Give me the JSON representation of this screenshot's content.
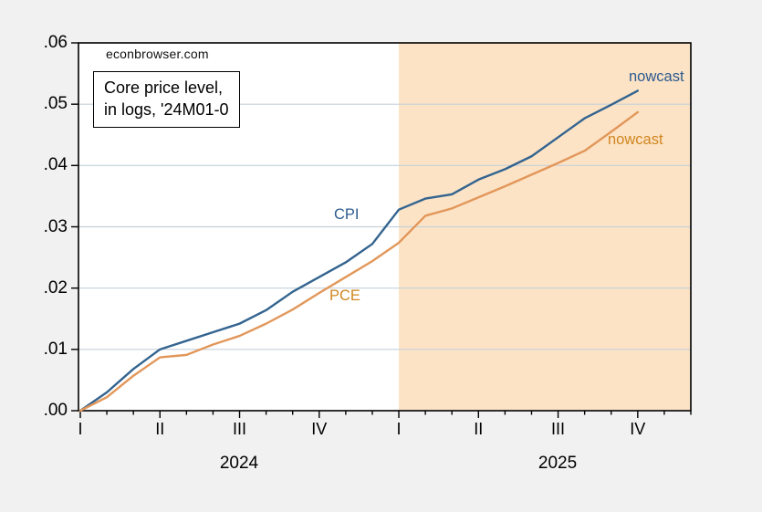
{
  "chart_data": {
    "type": "line",
    "watermark": "econbrowser.com",
    "annotation": {
      "line1": "Core price level,",
      "line2": "in logs, '24M01-0"
    },
    "ylim": [
      0,
      0.06
    ],
    "y_ticks": [
      ".00",
      ".01",
      ".02",
      ".03",
      ".04",
      ".05",
      ".06"
    ],
    "quarter_tick_labels": [
      "I",
      "II",
      "III",
      "IV",
      "I",
      "II",
      "III",
      "IV"
    ],
    "year_labels": [
      "2024",
      "2025"
    ],
    "grid": "horizontal",
    "axis_color": "#000000",
    "gridline_color": "#c6d1da",
    "plot_background": "#ffffff",
    "page_background": "#f1f1f2",
    "shade_start_month": "2025-01",
    "shade_color": "#fce3c6",
    "months": [
      "2024-01",
      "2024-02",
      "2024-03",
      "2024-04",
      "2024-05",
      "2024-06",
      "2024-07",
      "2024-08",
      "2024-09",
      "2024-10",
      "2024-11",
      "2024-12",
      "2025-01",
      "2025-02",
      "2025-03",
      "2025-04",
      "2025-05",
      "2025-06",
      "2025-07",
      "2025-08",
      "2025-09",
      "2025-10"
    ],
    "x_axis_end_month": "2025-12",
    "series": [
      {
        "name": "core-cpi",
        "label": "CPI",
        "annotation": "nowcast",
        "color": "#33648f",
        "label_color": "#2d5b8e",
        "values": [
          0.0,
          0.003,
          0.0068,
          0.01,
          0.0114,
          0.0128,
          0.0142,
          0.0164,
          0.0194,
          0.0218,
          0.0242,
          0.0272,
          0.0328,
          0.0346,
          0.0353,
          0.0377,
          0.0394,
          0.0415,
          0.0446,
          0.0477,
          0.0499,
          0.0522
        ]
      },
      {
        "name": "core-pce",
        "label": "PCE",
        "annotation": "nowcast",
        "color": "#e2975a",
        "label_color": "#d0861f",
        "values": [
          0.0,
          0.0022,
          0.0057,
          0.0087,
          0.0091,
          0.0108,
          0.0122,
          0.0142,
          0.0165,
          0.0192,
          0.0218,
          0.0244,
          0.0274,
          0.0318,
          0.033,
          0.0348,
          0.0366,
          0.0385,
          0.0404,
          0.0424,
          0.0455,
          0.0487
        ]
      }
    ]
  }
}
